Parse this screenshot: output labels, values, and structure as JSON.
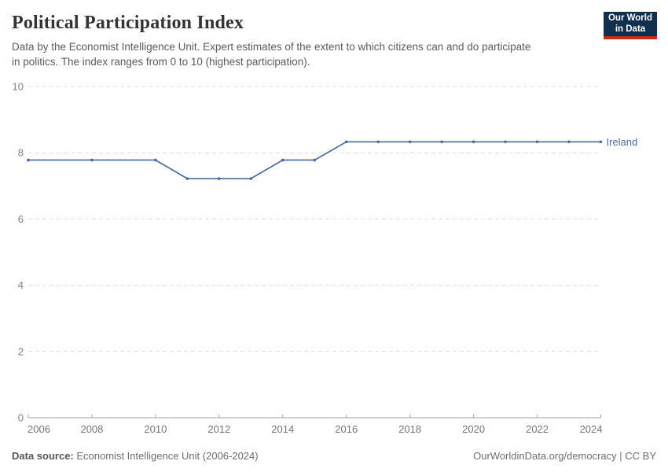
{
  "header": {
    "title": "Political Participation Index",
    "subtitle_lines": [
      "Data by the Economist Intelligence Unit. Expert estimates of the extent to which citizens can and do participate",
      "in politics. The index ranges from 0 to 10 (highest participation)."
    ],
    "logo": {
      "line1": "Our World",
      "line2": "in Data",
      "bg_color": "#132F4E",
      "accent_color": "#CC2A1E"
    }
  },
  "chart_data": {
    "type": "line",
    "title": "Political Participation Index",
    "xlabel": "",
    "ylabel": "",
    "xlim": [
      2006,
      2024
    ],
    "ylim": [
      0,
      10
    ],
    "x_ticks": [
      2006,
      2008,
      2010,
      2012,
      2014,
      2016,
      2018,
      2020,
      2022,
      2024
    ],
    "y_ticks": [
      0,
      2,
      4,
      6,
      8,
      10
    ],
    "grid": "horizontal dashed",
    "legend_position": "end-of-line label",
    "series": [
      {
        "name": "Ireland",
        "color": "#4C6A9C",
        "points": [
          [
            2006,
            7.78
          ],
          [
            2008,
            7.78
          ],
          [
            2010,
            7.78
          ],
          [
            2011,
            7.22
          ],
          [
            2012,
            7.22
          ],
          [
            2013,
            7.22
          ],
          [
            2014,
            7.78
          ],
          [
            2015,
            7.78
          ],
          [
            2016,
            8.33
          ],
          [
            2017,
            8.33
          ],
          [
            2018,
            8.33
          ],
          [
            2019,
            8.33
          ],
          [
            2020,
            8.33
          ],
          [
            2021,
            8.33
          ],
          [
            2022,
            8.33
          ],
          [
            2023,
            8.33
          ],
          [
            2024,
            8.33
          ]
        ]
      }
    ]
  },
  "footer": {
    "source_label": "Data source:",
    "source_text": " Economist Intelligence Unit (2006-2024)",
    "link_text": "OurWorldinData.org/democracy | CC BY"
  }
}
